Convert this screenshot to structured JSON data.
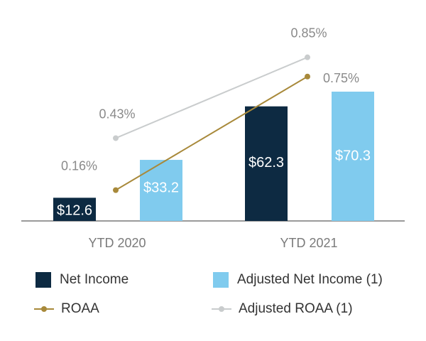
{
  "chart_data": {
    "type": "bar",
    "categories": [
      "YTD 2020",
      "YTD 2021"
    ],
    "series": [
      {
        "name": "Net Income",
        "kind": "bar",
        "axis": "left",
        "values": [
          12.6,
          62.3
        ],
        "labels": [
          "$12.6",
          "$62.3"
        ],
        "color": "#0d2a42"
      },
      {
        "name": "Adjusted Net Income (1)",
        "kind": "bar",
        "axis": "left",
        "values": [
          33.2,
          70.3
        ],
        "labels": [
          "$33.2",
          "$70.3"
        ],
        "color": "#80cbee"
      },
      {
        "name": "ROAA",
        "kind": "line",
        "axis": "right",
        "values": [
          0.16,
          0.75
        ],
        "labels": [
          "0.16%",
          "0.75%"
        ],
        "color": "#a8893a"
      },
      {
        "name": "Adjusted ROAA (1)",
        "kind": "line",
        "axis": "right",
        "values": [
          0.43,
          0.85
        ],
        "labels": [
          "0.43%",
          "0.85%"
        ],
        "color": "#c9cccd"
      }
    ],
    "ylim_left": [
      0,
      70.3
    ],
    "ylim_right": [
      0,
      1.0
    ],
    "title": "",
    "xlabel": "",
    "ylabel": "",
    "legend_position": "bottom"
  },
  "legend": {
    "net_income": "Net Income",
    "adj_net_income": "Adjusted Net Income (1)",
    "roaa": "ROAA",
    "adj_roaa": "Adjusted ROAA (1)"
  },
  "colors": {
    "net_income": "#0d2a42",
    "adj_net_income": "#80cbee",
    "roaa": "#a8893a",
    "adj_roaa": "#c9cccd",
    "axis": "#9a9a9a"
  }
}
